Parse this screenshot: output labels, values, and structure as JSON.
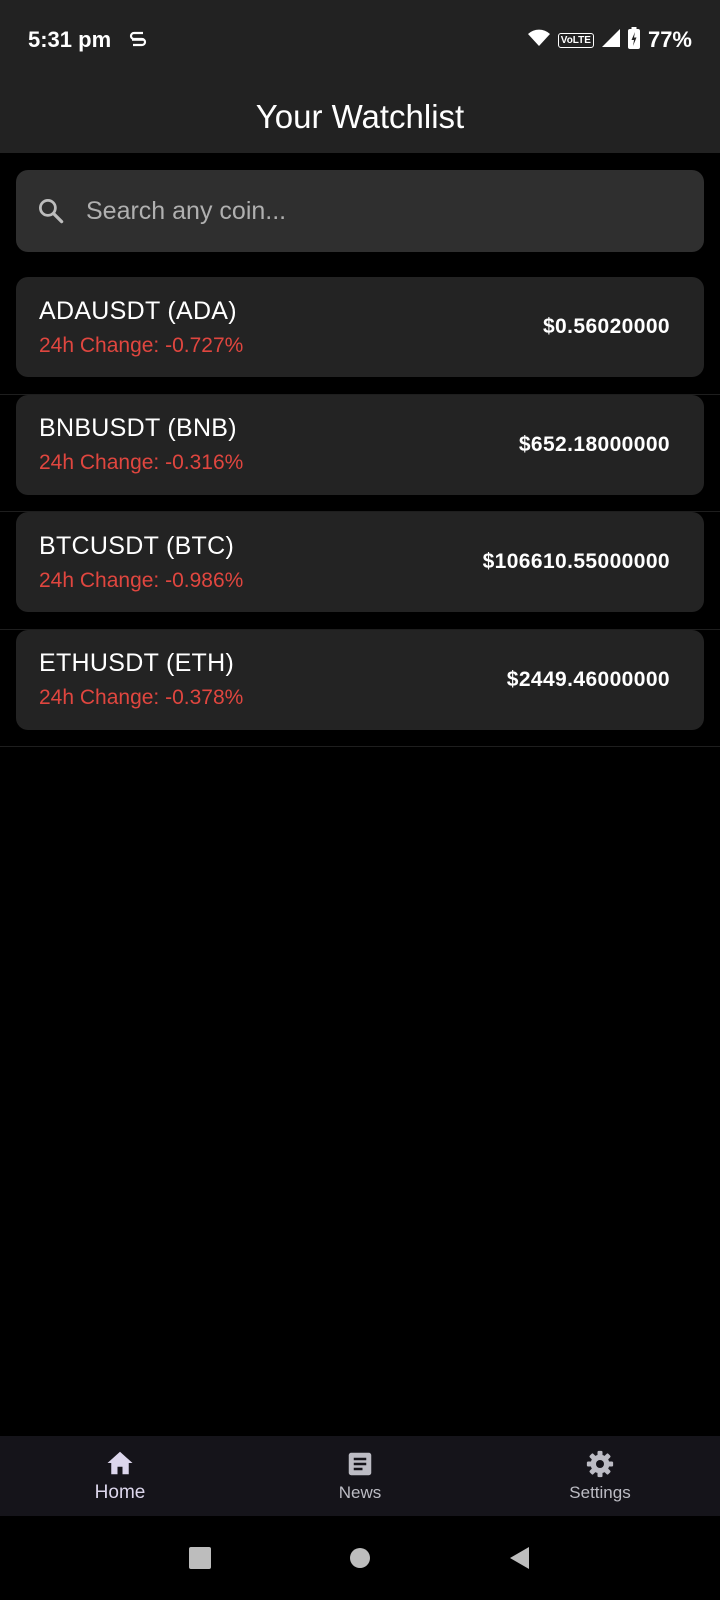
{
  "status_bar": {
    "time": "5:31 pm",
    "volte": "VoLTE",
    "battery": "77%",
    "icons": [
      "s-icon",
      "wifi-icon",
      "volte-icon",
      "signal-icon",
      "battery-icon"
    ]
  },
  "header": {
    "title": "Your Watchlist"
  },
  "search": {
    "placeholder": "Search any coin..."
  },
  "coins": [
    {
      "name": "ADAUSDT (ADA)",
      "change": "24h Change: -0.727%",
      "price": "$0.56020000"
    },
    {
      "name": "BNBUSDT (BNB)",
      "change": "24h Change: -0.316%",
      "price": "$652.18000000"
    },
    {
      "name": "BTCUSDT (BTC)",
      "change": "24h Change: -0.986%",
      "price": "$106610.55000000"
    },
    {
      "name": "ETHUSDT (ETH)",
      "change": "24h Change: -0.378%",
      "price": "$2449.46000000"
    }
  ],
  "bottom_nav": {
    "items": [
      {
        "label": "Home",
        "icon": "home-icon",
        "active": true
      },
      {
        "label": "News",
        "icon": "news-icon",
        "active": false
      },
      {
        "label": "Settings",
        "icon": "gear-icon",
        "active": false
      }
    ]
  },
  "colors": {
    "negative_change": "#e0463f",
    "bar_background": "#222222",
    "card_background": "#232323",
    "search_background": "#2f2f2f",
    "nav_background": "#15141a"
  }
}
